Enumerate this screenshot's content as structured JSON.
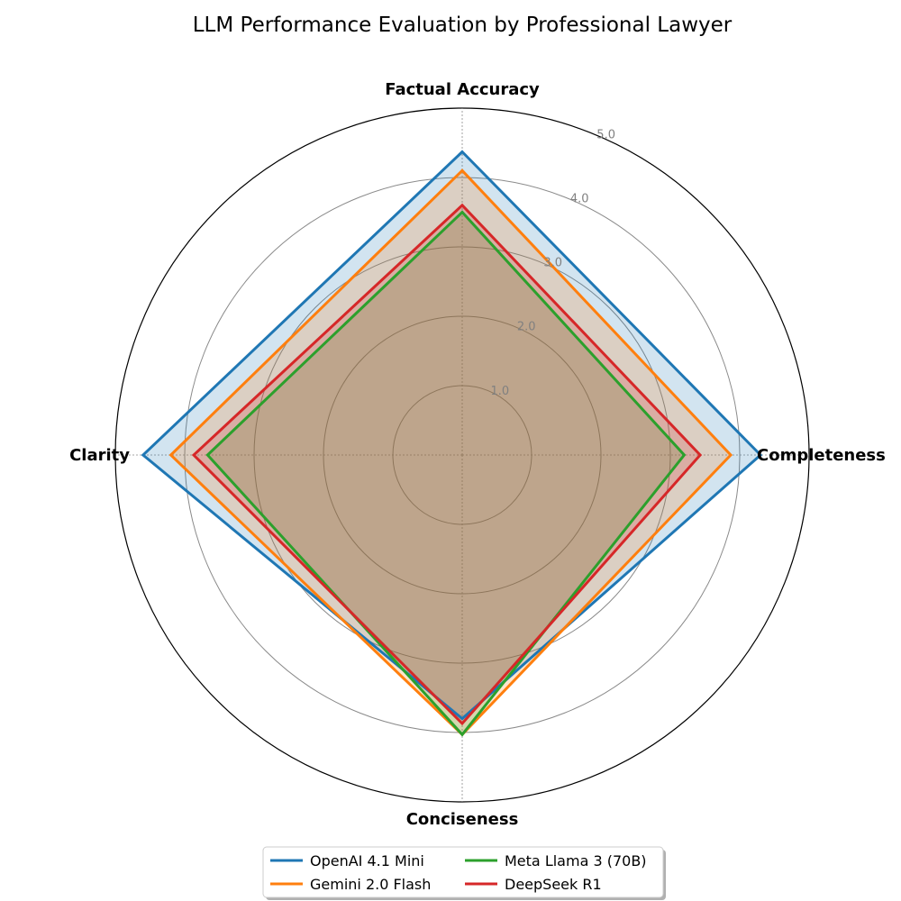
{
  "chart_data": {
    "type": "radar",
    "title": "LLM Performance Evaluation by Professional Lawyer",
    "axes": [
      "Factual Accuracy",
      "Completeness",
      "Conciseness",
      "Clarity"
    ],
    "rlim": [
      0,
      5
    ],
    "rticks": [
      1,
      2,
      3,
      4,
      5
    ],
    "rtick_labels": [
      "1.0",
      "2.0",
      "3.0",
      "4.0",
      "5.0"
    ],
    "grid": true,
    "legend_position": "bottom-center",
    "series": [
      {
        "name": "OpenAI 4.1 Mini",
        "values": [
          4.37,
          4.3,
          3.8,
          4.6
        ],
        "color": "#1f77b4"
      },
      {
        "name": "Gemini 2.0 Flash",
        "values": [
          4.1,
          3.87,
          4.03,
          4.2
        ],
        "color": "#ff7f0e"
      },
      {
        "name": "Meta Llama 3 (70B)",
        "values": [
          3.5,
          3.2,
          4.03,
          3.67
        ],
        "color": "#2ca02c"
      },
      {
        "name": "DeepSeek R1",
        "values": [
          3.6,
          3.43,
          3.87,
          3.87
        ],
        "color": "#d62728"
      }
    ]
  }
}
